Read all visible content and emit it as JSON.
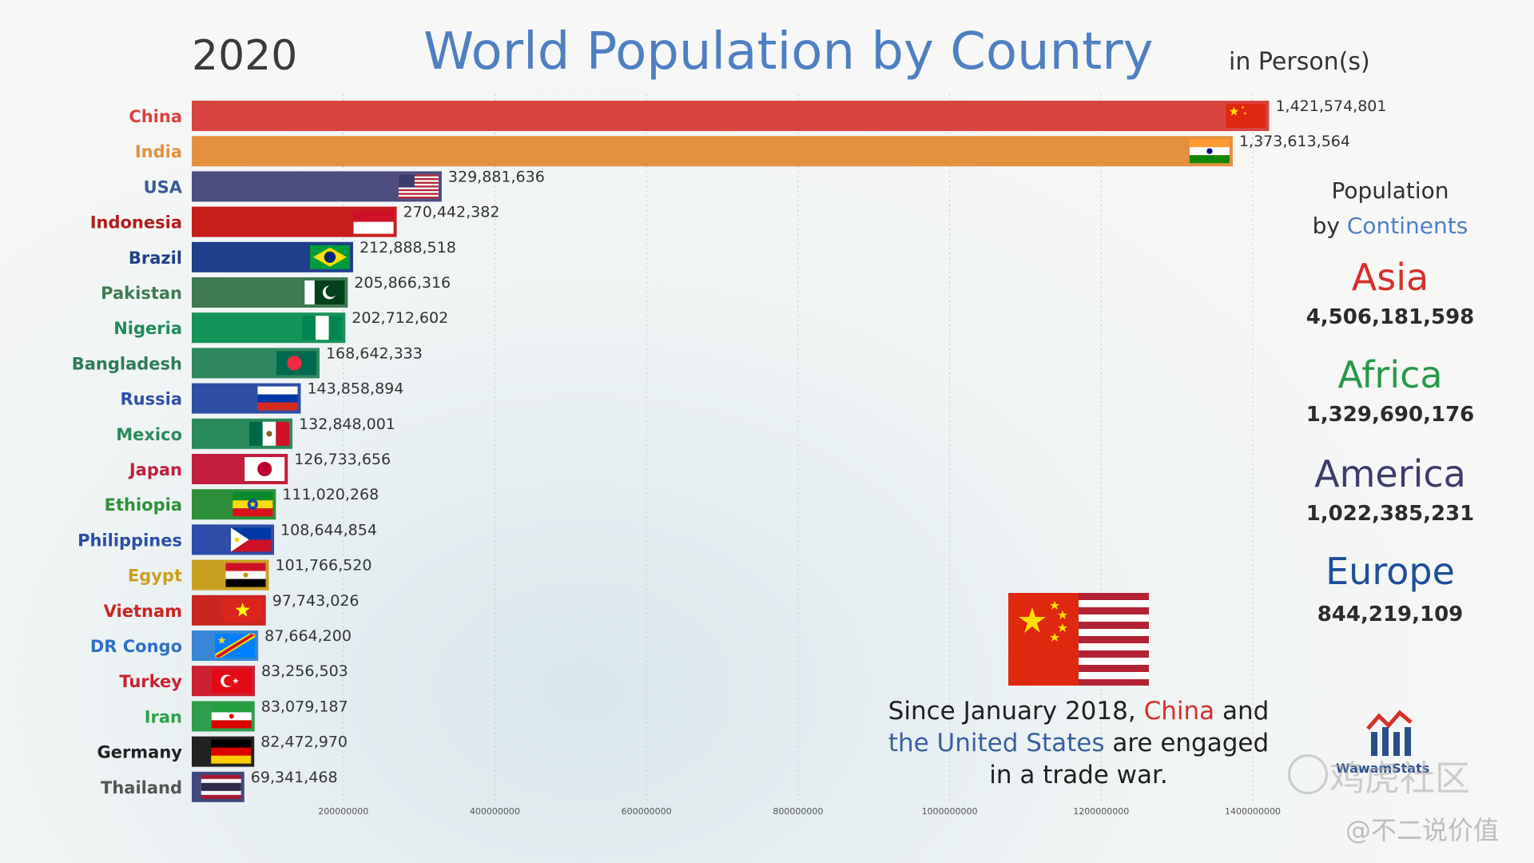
{
  "header": {
    "year": "2020",
    "title": "World Population by Country",
    "unit": "in Person(s)"
  },
  "chart_data": {
    "type": "bar",
    "orientation": "horizontal",
    "title": "World Population by Country",
    "xlim": [
      0,
      1500000000
    ],
    "x_ticks": [
      200000000,
      400000000,
      600000000,
      800000000,
      1000000000,
      1200000000,
      1400000000
    ],
    "x_tick_labels": [
      "200000000",
      "400000000",
      "600000000",
      "800000000",
      "1000000000",
      "1200000000",
      "1400000000"
    ],
    "grid": true,
    "categories": [
      "China",
      "India",
      "USA",
      "Indonesia",
      "Brazil",
      "Pakistan",
      "Nigeria",
      "Bangladesh",
      "Russia",
      "Mexico",
      "Japan",
      "Ethiopia",
      "Philippines",
      "Egypt",
      "Vietnam",
      "DR Congo",
      "Turkey",
      "Iran",
      "Germany",
      "Thailand"
    ],
    "values": [
      1421574801,
      1373613564,
      329881636,
      270442382,
      212888518,
      205866316,
      202712602,
      168642333,
      143858894,
      132848001,
      126733656,
      111020268,
      108644854,
      101766520,
      97743026,
      87664200,
      83256503,
      83079187,
      82472970,
      69341468
    ],
    "value_labels": [
      "1,421,574,801",
      "1,373,613,564",
      "329,881,636",
      "270,442,382",
      "212,888,518",
      "205,866,316",
      "202,712,602",
      "168,642,333",
      "143,858,894",
      "132,848,001",
      "126,733,656",
      "111,020,268",
      "108,644,854",
      "101,766,520",
      "97,743,026",
      "87,664,200",
      "83,256,503",
      "83,079,187",
      "82,472,970",
      "69,341,468"
    ],
    "bar_colors": [
      "#d9443f",
      "#e3913f",
      "#4d4e7f",
      "#c71d1d",
      "#1f3f8a",
      "#3e7a52",
      "#15945a",
      "#2e8760",
      "#2f4fa5",
      "#2a8a5b",
      "#c21e3e",
      "#2e8f3a",
      "#2d4da8",
      "#c8a020",
      "#c92523",
      "#3a86d6",
      "#cc2033",
      "#2f9e4c",
      "#222222",
      "#3f4a7e"
    ],
    "label_colors": [
      "#d9443f",
      "#e3913f",
      "#3a5a95",
      "#b01d1d",
      "#1f3f8a",
      "#3e7a52",
      "#1f8a5a",
      "#2e7a56",
      "#2f4fa5",
      "#2a8a5b",
      "#c21e3e",
      "#2e8f3a",
      "#2d4da8",
      "#c8a020",
      "#c92523",
      "#2f6fc6",
      "#cc2033",
      "#2f9e4c",
      "#222222",
      "#555555"
    ],
    "flags": [
      "china-flag",
      "india-flag",
      "usa-flag",
      "indonesia-flag",
      "brazil-flag",
      "pakistan-flag",
      "nigeria-flag",
      "bangladesh-flag",
      "russia-flag",
      "mexico-flag",
      "japan-flag",
      "ethiopia-flag",
      "philippines-flag",
      "egypt-flag",
      "vietnam-flag",
      "dr-congo-flag",
      "turkey-flag",
      "iran-flag",
      "germany-flag",
      "thailand-flag"
    ]
  },
  "sidebar": {
    "title_line1": "Population",
    "title_by": "by",
    "title_accent": "Continents",
    "continents": [
      {
        "name": "Asia",
        "value": "4,506,181,598",
        "color": "#d5302a"
      },
      {
        "name": "Africa",
        "value": "1,329,690,176",
        "color": "#27984a"
      },
      {
        "name": "America",
        "value": "1,022,385,231",
        "color": "#3e3c68"
      },
      {
        "name": "Europe",
        "value": "844,219,109",
        "color": "#1f4e9a"
      }
    ]
  },
  "caption": {
    "part1": "Since January 2018, ",
    "china": "China",
    "part2": " and",
    "part3": "the ",
    "us": "the United States",
    "part4": " are engaged",
    "part5": "in a trade war."
  },
  "branding": {
    "logo_text": "WawamStats",
    "watermark1": "鸡虎社区",
    "watermark2": "@不二说价值"
  }
}
